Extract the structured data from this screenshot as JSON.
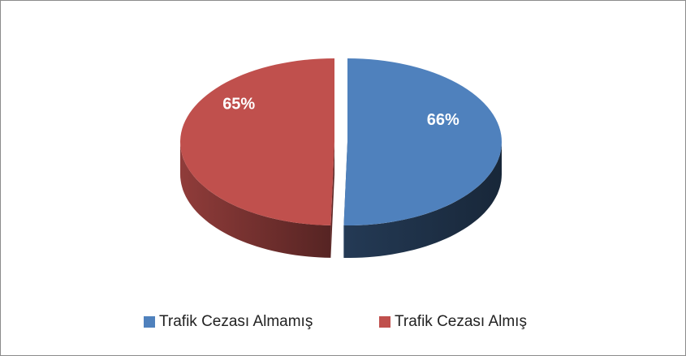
{
  "chart_data": {
    "type": "pie",
    "categories": [
      "Trafik Cezası Almamış",
      "Trafik Cezası Almış"
    ],
    "values": [
      66,
      65
    ],
    "value_labels": [
      "66%",
      "65%"
    ],
    "colors": [
      "#4f81bd",
      "#c0504d"
    ],
    "legend": "bottom"
  }
}
